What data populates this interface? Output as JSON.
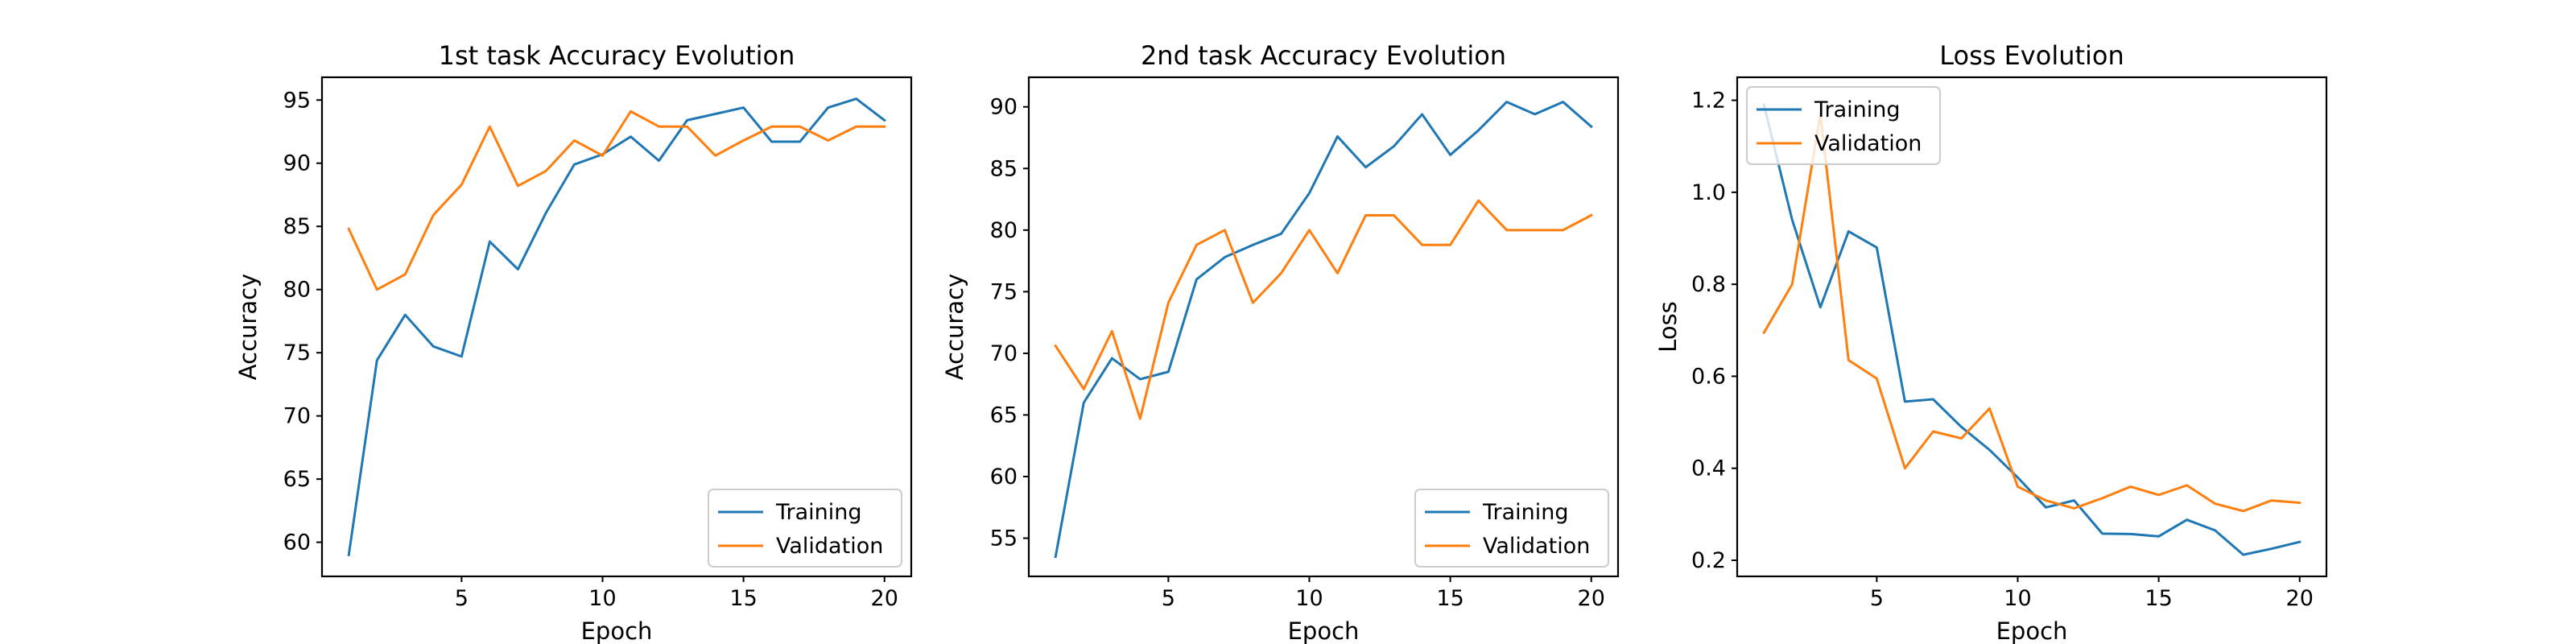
{
  "chart_data": [
    {
      "type": "line",
      "title": "1st task Accuracy Evolution",
      "xlabel": "Epoch",
      "ylabel": "Accuracy",
      "xlim": [
        0.05,
        20.95
      ],
      "ylim": [
        57.3,
        96.8
      ],
      "xticks": [
        5,
        10,
        15,
        20
      ],
      "yticks": [
        60,
        65,
        70,
        75,
        80,
        85,
        90,
        95
      ],
      "legend": "lower-right",
      "grid": false,
      "x": [
        1,
        2,
        3,
        4,
        5,
        6,
        7,
        8,
        9,
        10,
        11,
        12,
        13,
        14,
        15,
        16,
        17,
        18,
        19,
        20
      ],
      "series": [
        {
          "name": "Training",
          "color": "#1f77b4",
          "values": [
            59.0,
            74.4,
            78.0,
            75.5,
            74.7,
            83.8,
            81.6,
            86.1,
            89.9,
            90.7,
            92.1,
            90.2,
            93.4,
            93.9,
            94.4,
            91.7,
            91.7,
            94.4,
            95.1,
            93.4
          ]
        },
        {
          "name": "Validation",
          "color": "#ff7f0e",
          "values": [
            84.8,
            80.0,
            81.2,
            85.9,
            88.3,
            92.9,
            88.2,
            89.4,
            91.8,
            90.6,
            94.1,
            92.9,
            92.9,
            90.6,
            91.8,
            92.9,
            92.9,
            91.8,
            92.9,
            92.9
          ]
        }
      ]
    },
    {
      "type": "line",
      "title": "2nd task Accuracy Evolution",
      "xlabel": "Epoch",
      "ylabel": "Accuracy",
      "xlim": [
        0.05,
        20.95
      ],
      "ylim": [
        51.9,
        92.4
      ],
      "xticks": [
        5,
        10,
        15,
        20
      ],
      "yticks": [
        55,
        60,
        65,
        70,
        75,
        80,
        85,
        90
      ],
      "legend": "lower-right",
      "grid": false,
      "x": [
        1,
        2,
        3,
        4,
        5,
        6,
        7,
        8,
        9,
        10,
        11,
        12,
        13,
        14,
        15,
        16,
        17,
        18,
        19,
        20
      ],
      "series": [
        {
          "name": "Training",
          "color": "#1f77b4",
          "values": [
            53.5,
            66.0,
            69.6,
            67.9,
            68.5,
            76.0,
            77.8,
            78.8,
            79.7,
            83.0,
            87.6,
            85.1,
            86.8,
            89.4,
            86.1,
            88.1,
            90.4,
            89.4,
            90.4,
            88.4
          ]
        },
        {
          "name": "Validation",
          "color": "#ff7f0e",
          "values": [
            70.6,
            67.1,
            71.8,
            64.7,
            74.1,
            78.8,
            80.0,
            74.1,
            76.5,
            80.0,
            76.5,
            81.2,
            81.2,
            78.8,
            78.8,
            82.4,
            80.0,
            80.0,
            80.0,
            81.2
          ]
        }
      ]
    },
    {
      "type": "line",
      "title": "Loss Evolution",
      "xlabel": "Epoch",
      "ylabel": "Loss",
      "xlim": [
        0.05,
        20.95
      ],
      "ylim": [
        0.165,
        1.25
      ],
      "xticks": [
        5,
        10,
        15,
        20
      ],
      "yticks": [
        0.2,
        0.4,
        0.6,
        0.8,
        1.0,
        1.2
      ],
      "legend": "top-left",
      "grid": false,
      "x": [
        1,
        2,
        3,
        4,
        5,
        6,
        7,
        8,
        9,
        10,
        11,
        12,
        13,
        14,
        15,
        16,
        17,
        18,
        19,
        20
      ],
      "series": [
        {
          "name": "Training",
          "color": "#1f77b4",
          "values": [
            1.19,
            0.94,
            0.75,
            0.915,
            0.88,
            0.545,
            0.55,
            0.49,
            0.44,
            0.38,
            0.315,
            0.33,
            0.258,
            0.257,
            0.252,
            0.288,
            0.265,
            0.212,
            0.225,
            0.24
          ]
        },
        {
          "name": "Validation",
          "color": "#ff7f0e",
          "values": [
            0.695,
            0.8,
            1.17,
            0.635,
            0.595,
            0.4,
            0.48,
            0.465,
            0.53,
            0.36,
            0.33,
            0.313,
            0.335,
            0.36,
            0.342,
            0.363,
            0.323,
            0.307,
            0.33,
            0.325
          ]
        }
      ]
    }
  ]
}
